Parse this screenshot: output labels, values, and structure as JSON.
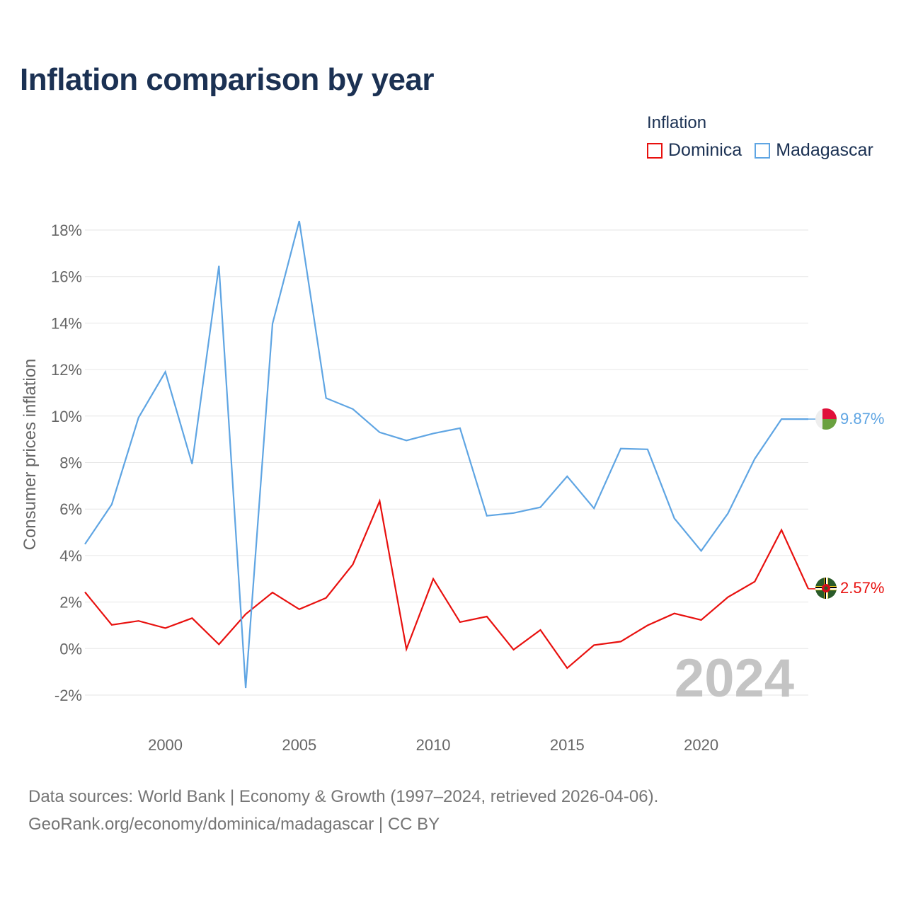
{
  "title": "Inflation comparison by year",
  "legend": {
    "title": "Inflation",
    "items": [
      {
        "name": "Dominica",
        "color": "#e8100e"
      },
      {
        "name": "Madagascar",
        "color": "#5fa5e3"
      }
    ]
  },
  "footer": {
    "line1": "Data sources: World Bank | Economy & Growth (1997–2024, retrieved 2026-04-06).",
    "line2": "GeoRank.org/economy/dominica/madagascar | CC BY"
  },
  "chart_data": {
    "type": "line",
    "title": "Inflation comparison by year",
    "xlabel": "",
    "ylabel": "Consumer prices inflation",
    "xlim": [
      1997,
      2024
    ],
    "ylim": [
      -2.5,
      18.5
    ],
    "x_ticks": [
      2000,
      2005,
      2010,
      2015,
      2020
    ],
    "y_ticks": [
      -2,
      0,
      2,
      4,
      6,
      8,
      10,
      12,
      14,
      16,
      18
    ],
    "y_tick_labels": [
      "-2%",
      "0%",
      "2%",
      "4%",
      "6%",
      "8%",
      "10%",
      "12%",
      "14%",
      "16%",
      "18%"
    ],
    "year_watermark": "2024",
    "x": [
      1997,
      1998,
      1999,
      2000,
      2001,
      2002,
      2003,
      2004,
      2005,
      2006,
      2007,
      2008,
      2009,
      2010,
      2011,
      2012,
      2013,
      2014,
      2015,
      2016,
      2017,
      2018,
      2019,
      2020,
      2021,
      2022,
      2023,
      2024
    ],
    "series": [
      {
        "name": "Dominica",
        "color": "#e8100e",
        "end_label": "2.57%",
        "values": [
          2.43,
          1.02,
          1.19,
          0.88,
          1.31,
          0.18,
          1.48,
          2.41,
          1.69,
          2.18,
          3.62,
          6.34,
          -0.02,
          3.0,
          1.14,
          1.38,
          -0.05,
          0.8,
          -0.84,
          0.15,
          0.3,
          1.0,
          1.51,
          1.23,
          2.21,
          2.88,
          5.1,
          2.57
        ]
      },
      {
        "name": "Madagascar",
        "color": "#5fa5e3",
        "end_label": "9.87%",
        "values": [
          4.49,
          6.2,
          9.93,
          11.9,
          7.94,
          16.46,
          -1.7,
          13.97,
          18.39,
          10.77,
          10.3,
          9.3,
          8.95,
          9.25,
          9.48,
          5.71,
          5.83,
          6.08,
          7.41,
          6.03,
          8.6,
          8.57,
          5.6,
          4.2,
          5.81,
          8.16,
          9.87,
          9.87
        ]
      }
    ]
  }
}
